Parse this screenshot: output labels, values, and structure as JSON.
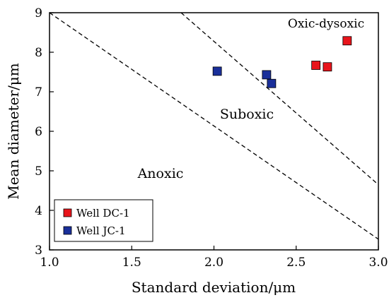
{
  "chart_data": {
    "type": "scatter",
    "title": "",
    "xlabel": "Standard deviation/μm",
    "ylabel": "Mean diameter/μm",
    "xlim": [
      1.0,
      3.0
    ],
    "ylim": [
      3,
      9
    ],
    "x_ticks": [
      "1.0",
      "1.5",
      "2.0",
      "2.5",
      "3.0"
    ],
    "y_ticks": [
      "3",
      "4",
      "5",
      "6",
      "7",
      "8",
      "9"
    ],
    "grid": false,
    "legend_position": "bottom-left",
    "series": [
      {
        "name": "Well DC-1",
        "color": "#e8141b",
        "marker": "square",
        "points": [
          [
            2.62,
            7.67
          ],
          [
            2.69,
            7.63
          ],
          [
            2.81,
            8.29
          ]
        ]
      },
      {
        "name": "Well JC-1",
        "color": "#1a2f9a",
        "marker": "square",
        "points": [
          [
            2.02,
            7.52
          ],
          [
            2.32,
            7.43
          ],
          [
            2.35,
            7.21
          ]
        ]
      }
    ],
    "boundary_lines": [
      {
        "style": "dashed",
        "points": [
          [
            1.0,
            9.0
          ],
          [
            3.0,
            3.27
          ]
        ]
      },
      {
        "style": "dashed",
        "points": [
          [
            1.8,
            9.0
          ],
          [
            3.0,
            4.65
          ]
        ]
      }
    ],
    "regions": [
      {
        "label": "Oxic-dysoxic",
        "at": [
          2.68,
          8.72
        ]
      },
      {
        "label": "Suboxic",
        "at": [
          2.1,
          6.4
        ]
      },
      {
        "label": "Anoxic",
        "at": [
          1.55,
          4.8
        ]
      }
    ]
  }
}
